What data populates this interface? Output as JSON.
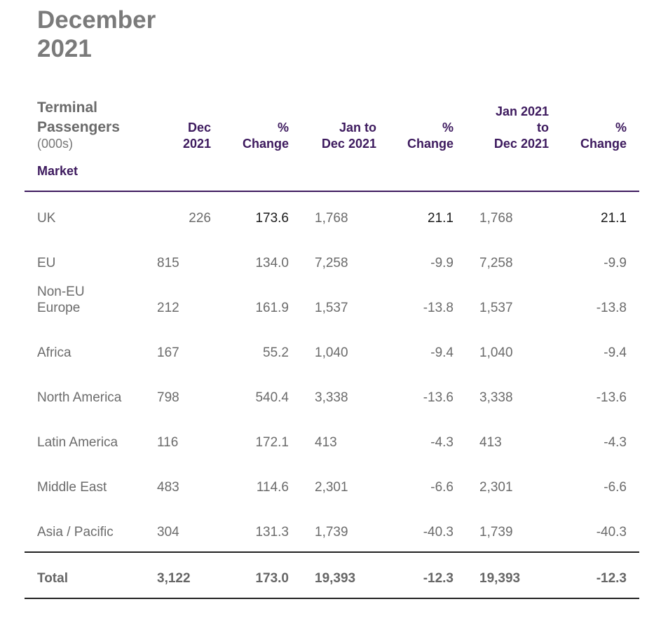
{
  "title": {
    "line1": "December",
    "line2": "2021"
  },
  "header": {
    "label_line1": "Terminal",
    "label_line2": "Passengers",
    "unit": "(000s)",
    "market": "Market",
    "col_dec_1": "Dec",
    "col_dec_2": "2021",
    "col_pct1_1": "%",
    "col_pct1_2": "Change",
    "col_jan_1": "Jan to",
    "col_jan_2": "Dec 2021",
    "col_pct2_1": "%",
    "col_pct2_2": "Change",
    "col_jan21_1": "Jan 2021",
    "col_jan21_2": "to",
    "col_jan21_3": "Dec 2021",
    "col_pct3_1": "%",
    "col_pct3_2": "Change"
  },
  "rows": [
    {
      "market": "UK",
      "dec": "226",
      "pct1": "173.6",
      "jan": "1,768",
      "pct2": "21.1",
      "jan21": "1,768",
      "pct3": "21.1"
    },
    {
      "market": "EU",
      "dec": "815",
      "pct1": "134.0",
      "jan": "7,258",
      "pct2": "-9.9",
      "jan21": "7,258",
      "pct3": "-9.9"
    },
    {
      "market_line1": "Non-EU",
      "market_line2": "Europe",
      "dec": "212",
      "pct1": "161.9",
      "jan": "1,537",
      "pct2": "-13.8",
      "jan21": "1,537",
      "pct3": "-13.8"
    },
    {
      "market": "Africa",
      "dec": "167",
      "pct1": "55.2",
      "jan": "1,040",
      "pct2": "-9.4",
      "jan21": "1,040",
      "pct3": "-9.4"
    },
    {
      "market": "North America",
      "dec": "798",
      "pct1": "540.4",
      "jan": "3,338",
      "pct2": "-13.6",
      "jan21": "3,338",
      "pct3": "-13.6"
    },
    {
      "market": "Latin America",
      "dec": "116",
      "pct1": "172.1",
      "jan": "413",
      "pct2": "-4.3",
      "jan21": "413",
      "pct3": "-4.3"
    },
    {
      "market": "Middle East",
      "dec": "483",
      "pct1": "114.6",
      "jan": "2,301",
      "pct2": "-6.6",
      "jan21": "2,301",
      "pct3": "-6.6"
    },
    {
      "market": "Asia / Pacific",
      "dec": "304",
      "pct1": "131.3",
      "jan": "1,739",
      "pct2": "-40.3",
      "jan21": "1,739",
      "pct3": "-40.3"
    }
  ],
  "total": {
    "market": "Total",
    "dec": "3,122",
    "pct1": "173.0",
    "jan": "19,393",
    "pct2": "-12.3",
    "jan21": "19,393",
    "pct3": "-12.3"
  }
}
